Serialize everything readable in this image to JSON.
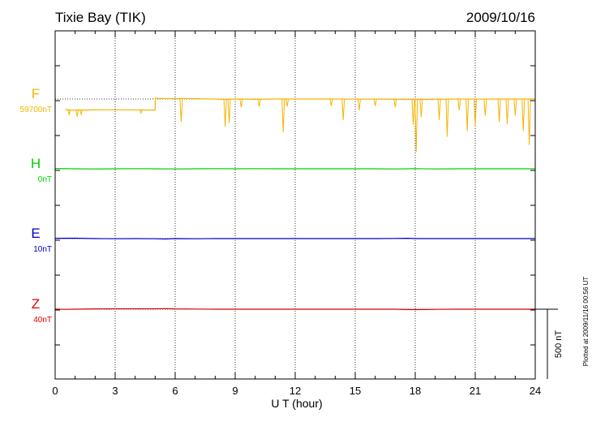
{
  "chart_data": {
    "type": "line",
    "station": "Tixie Bay (TIK)",
    "date": "2009/10/16",
    "xlabel": "U T (hour)",
    "xlim": [
      0,
      24
    ],
    "xticks": [
      "0",
      "3",
      "6",
      "9",
      "12",
      "15",
      "18",
      "21",
      "24"
    ],
    "scale_bar": "500 nT",
    "plotted_note": "Plotted at 2009/11/16 00:56 UT",
    "grid": true,
    "series": [
      {
        "name": "F",
        "baseline_label": "59700nT",
        "color": "#f5b400",
        "points": [
          [
            0.5,
            -75
          ],
          [
            0.8,
            -80
          ],
          [
            1.2,
            -78
          ],
          [
            1.5,
            -80
          ],
          [
            2.0,
            -77
          ],
          [
            3.0,
            -78
          ],
          [
            4.0,
            -78
          ],
          [
            4.9,
            -79
          ],
          [
            5.0,
            5
          ],
          [
            5.5,
            3
          ],
          [
            6.0,
            2
          ],
          [
            6.5,
            4
          ],
          [
            7.0,
            2
          ],
          [
            8.0,
            0
          ],
          [
            8.4,
            -3
          ],
          [
            9.0,
            0
          ],
          [
            10.0,
            -2
          ],
          [
            11.0,
            0
          ],
          [
            12.0,
            0
          ],
          [
            13.0,
            0
          ],
          [
            14.0,
            0
          ],
          [
            15.0,
            -1
          ],
          [
            16.0,
            -1
          ],
          [
            17.0,
            -2
          ],
          [
            17.8,
            -3
          ],
          [
            18.0,
            -3
          ],
          [
            19.0,
            -2
          ],
          [
            20.0,
            0
          ],
          [
            21.0,
            -1
          ],
          [
            22.0,
            0
          ],
          [
            23.0,
            0
          ],
          [
            23.5,
            0
          ],
          [
            24.0,
            0
          ]
        ],
        "dips": [
          [
            0.7,
            -115
          ],
          [
            1.1,
            -125
          ],
          [
            1.3,
            -110
          ],
          [
            4.3,
            -100
          ],
          [
            6.3,
            -165
          ],
          [
            8.5,
            -200
          ],
          [
            8.7,
            -170
          ],
          [
            9.3,
            -60
          ],
          [
            10.2,
            -55
          ],
          [
            11.4,
            -240
          ],
          [
            11.6,
            -55
          ],
          [
            13.8,
            -50
          ],
          [
            14.4,
            -150
          ],
          [
            15.2,
            -80
          ],
          [
            16.0,
            -50
          ],
          [
            17.0,
            -60
          ],
          [
            17.9,
            -185
          ],
          [
            18.05,
            -380
          ],
          [
            18.3,
            -130
          ],
          [
            19.2,
            -150
          ],
          [
            19.6,
            -270
          ],
          [
            20.2,
            -80
          ],
          [
            20.6,
            -230
          ],
          [
            21.0,
            -195
          ],
          [
            21.5,
            -120
          ],
          [
            22.2,
            -165
          ],
          [
            22.6,
            -180
          ],
          [
            23.0,
            -120
          ],
          [
            23.4,
            -230
          ],
          [
            23.7,
            -330
          ]
        ]
      },
      {
        "name": "H",
        "baseline_label": "0nT",
        "color": "#00d000",
        "points": [
          [
            0,
            2
          ],
          [
            1,
            0
          ],
          [
            2,
            -1
          ],
          [
            3,
            0
          ],
          [
            4,
            1
          ],
          [
            5,
            0
          ],
          [
            6,
            -1
          ],
          [
            7,
            0
          ],
          [
            8,
            1
          ],
          [
            9,
            0
          ],
          [
            10,
            1
          ],
          [
            11,
            0
          ],
          [
            12,
            0
          ],
          [
            13,
            0
          ],
          [
            14,
            0
          ],
          [
            15,
            0
          ],
          [
            16,
            0
          ],
          [
            17,
            -1
          ],
          [
            18,
            1
          ],
          [
            19,
            -1
          ],
          [
            20,
            0
          ],
          [
            21,
            0
          ],
          [
            22,
            0
          ],
          [
            23,
            0
          ],
          [
            24,
            0
          ]
        ]
      },
      {
        "name": "E",
        "baseline_label": "10nT",
        "color": "#0000cc",
        "points": [
          [
            0,
            2
          ],
          [
            1,
            3
          ],
          [
            2,
            0
          ],
          [
            3,
            -1
          ],
          [
            4,
            0
          ],
          [
            5,
            -1
          ],
          [
            5.5,
            -3
          ],
          [
            6,
            0
          ],
          [
            7,
            -1
          ],
          [
            8,
            0
          ],
          [
            9,
            0
          ],
          [
            10,
            0
          ],
          [
            11,
            0
          ],
          [
            12,
            0
          ],
          [
            13,
            0
          ],
          [
            14,
            0
          ],
          [
            15,
            0
          ],
          [
            16,
            0
          ],
          [
            17,
            1
          ],
          [
            17.6,
            2
          ],
          [
            18,
            0
          ],
          [
            19,
            0
          ],
          [
            20,
            0
          ],
          [
            21,
            0
          ],
          [
            22,
            0
          ],
          [
            23,
            0
          ],
          [
            24,
            0
          ]
        ]
      },
      {
        "name": "Z",
        "baseline_label": "40nT",
        "color": "#dd0000",
        "points": [
          [
            0,
            1
          ],
          [
            0.5,
            -1
          ],
          [
            1,
            0
          ],
          [
            2,
            2
          ],
          [
            3,
            3
          ],
          [
            4,
            3
          ],
          [
            5,
            3
          ],
          [
            5.6,
            4
          ],
          [
            6,
            2
          ],
          [
            7,
            1
          ],
          [
            8,
            0
          ],
          [
            9,
            0
          ],
          [
            10,
            0
          ],
          [
            11,
            0
          ],
          [
            12,
            0
          ],
          [
            13,
            0
          ],
          [
            14,
            0
          ],
          [
            15,
            0
          ],
          [
            16,
            0
          ],
          [
            17,
            0
          ],
          [
            17.5,
            -2
          ],
          [
            18,
            -3
          ],
          [
            18.5,
            -2
          ],
          [
            19,
            -1
          ],
          [
            20,
            0
          ],
          [
            21,
            0
          ],
          [
            22,
            0
          ],
          [
            23,
            0
          ],
          [
            24,
            0
          ]
        ]
      }
    ]
  }
}
